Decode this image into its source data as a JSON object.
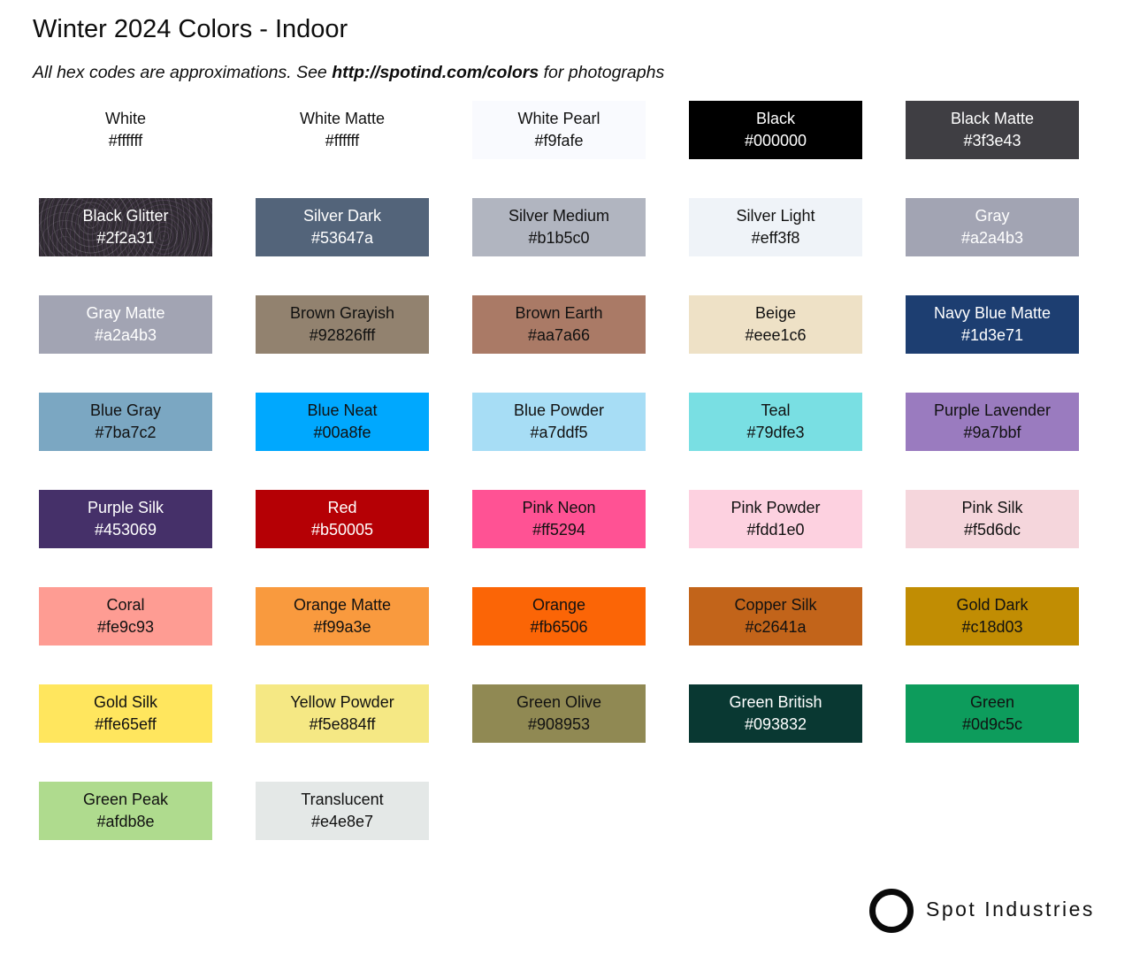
{
  "header": {
    "title": "Winter 2024 Colors - Indoor",
    "subtitle": {
      "prefix": "All hex codes are approximations. See ",
      "link": "http://spotind.com/colors",
      "suffix": " for photographs"
    }
  },
  "palette": {
    "columns": 5,
    "swatches": [
      {
        "name": "White",
        "hex": "#ffffff",
        "bg": "#ffffff",
        "fg": "#111111"
      },
      {
        "name": "White Matte",
        "hex": "#ffffff",
        "bg": "#ffffff",
        "fg": "#111111"
      },
      {
        "name": "White Pearl",
        "hex": "#f9fafe",
        "bg": "#f9fafe",
        "fg": "#111111"
      },
      {
        "name": "Black",
        "hex": "#000000",
        "bg": "#000000",
        "fg": "#ffffff"
      },
      {
        "name": "Black Matte",
        "hex": "#3f3e43",
        "bg": "#3f3e43",
        "fg": "#ffffff"
      },
      {
        "name": "Black Glitter",
        "hex": "#2f2a31",
        "bg": "#2f2a31",
        "fg": "#ffffff",
        "texture": "glitter"
      },
      {
        "name": "Silver Dark",
        "hex": "#53647a",
        "bg": "#53647a",
        "fg": "#ffffff"
      },
      {
        "name": "Silver Medium",
        "hex": "#b1b5c0",
        "bg": "#b1b5c0",
        "fg": "#111111"
      },
      {
        "name": "Silver Light",
        "hex": "#eff3f8",
        "bg": "#eff3f8",
        "fg": "#111111"
      },
      {
        "name": "Gray",
        "hex": "#a2a4b3",
        "bg": "#a2a4b3",
        "fg": "#ffffff"
      },
      {
        "name": "Gray Matte",
        "hex": "#a2a4b3",
        "bg": "#a2a4b3",
        "fg": "#ffffff"
      },
      {
        "name": "Brown Grayish",
        "hex": "#92826fff",
        "bg": "#92826f",
        "fg": "#111111"
      },
      {
        "name": "Brown Earth",
        "hex": "#aa7a66",
        "bg": "#aa7a66",
        "fg": "#111111"
      },
      {
        "name": "Beige",
        "hex": "#eee1c6",
        "bg": "#eee1c6",
        "fg": "#111111"
      },
      {
        "name": "Navy Blue Matte",
        "hex": "#1d3e71",
        "bg": "#1d3e71",
        "fg": "#ffffff"
      },
      {
        "name": "Blue Gray",
        "hex": "#7ba7c2",
        "bg": "#7ba7c2",
        "fg": "#111111"
      },
      {
        "name": "Blue Neat",
        "hex": "#00a8fe",
        "bg": "#00a8fe",
        "fg": "#111111"
      },
      {
        "name": "Blue Powder",
        "hex": "#a7ddf5",
        "bg": "#a7ddf5",
        "fg": "#111111"
      },
      {
        "name": "Teal",
        "hex": "#79dfe3",
        "bg": "#79dfe3",
        "fg": "#111111"
      },
      {
        "name": "Purple Lavender",
        "hex": "#9a7bbf",
        "bg": "#9a7bbf",
        "fg": "#111111"
      },
      {
        "name": "Purple Silk",
        "hex": "#453069",
        "bg": "#453069",
        "fg": "#ffffff"
      },
      {
        "name": "Red",
        "hex": "#b50005",
        "bg": "#b50005",
        "fg": "#ffffff"
      },
      {
        "name": "Pink Neon",
        "hex": "#ff5294",
        "bg": "#ff5294",
        "fg": "#111111"
      },
      {
        "name": "Pink Powder",
        "hex": "#fdd1e0",
        "bg": "#fdd1e0",
        "fg": "#111111"
      },
      {
        "name": "Pink Silk",
        "hex": "#f5d6dc",
        "bg": "#f5d6dc",
        "fg": "#111111"
      },
      {
        "name": "Coral",
        "hex": "#fe9c93",
        "bg": "#fe9c93",
        "fg": "#111111"
      },
      {
        "name": "Orange Matte",
        "hex": "#f99a3e",
        "bg": "#f99a3e",
        "fg": "#111111"
      },
      {
        "name": "Orange",
        "hex": "#fb6506",
        "bg": "#fb6506",
        "fg": "#111111"
      },
      {
        "name": "Copper Silk",
        "hex": "#c2641a",
        "bg": "#c2641a",
        "fg": "#111111"
      },
      {
        "name": "Gold Dark",
        "hex": "#c18d03",
        "bg": "#c18d03",
        "fg": "#111111"
      },
      {
        "name": "Gold Silk",
        "hex": "#ffe65eff",
        "bg": "#ffe65e",
        "fg": "#111111"
      },
      {
        "name": "Yellow Powder",
        "hex": "#f5e884ff",
        "bg": "#f5e884",
        "fg": "#111111"
      },
      {
        "name": "Green Olive",
        "hex": "#908953",
        "bg": "#908953",
        "fg": "#111111"
      },
      {
        "name": "Green British",
        "hex": "#093832",
        "bg": "#093832",
        "fg": "#ffffff"
      },
      {
        "name": "Green",
        "hex": "#0d9c5c",
        "bg": "#0d9c5c",
        "fg": "#111111"
      },
      {
        "name": "Green Peak",
        "hex": "#afdb8e",
        "bg": "#afdb8e",
        "fg": "#111111"
      },
      {
        "name": "Translucent",
        "hex": "#e4e8e7",
        "bg": "#e4e8e7",
        "fg": "#111111"
      }
    ]
  },
  "footer": {
    "brand": "Spot Industries",
    "logo_icon": "circle-outline"
  }
}
